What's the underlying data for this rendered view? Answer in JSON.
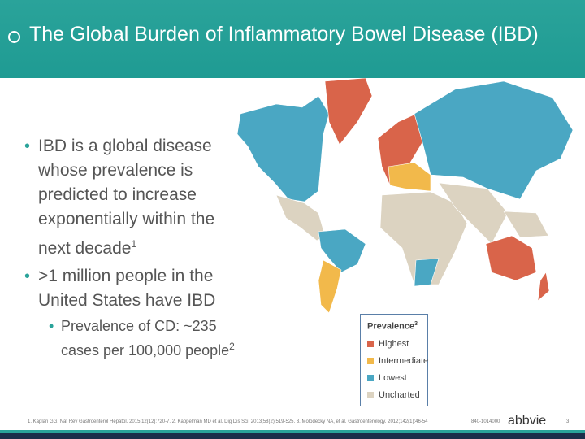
{
  "header": {
    "title": "The Global Burden of Inflammatory Bowel Disease (IBD)"
  },
  "bullets": [
    {
      "text": "IBD is a global disease whose prevalence is predicted to increase exponentially within the next decade",
      "ref": "1"
    },
    {
      "text": ">1 million people in the United States have IBD",
      "sub": [
        {
          "text": "Prevalence of CD: ~235 cases per 100,000 people",
          "ref": "2"
        }
      ]
    }
  ],
  "legend": {
    "title": "Prevalence",
    "ref": "3",
    "items": [
      {
        "name": "Highest",
        "color": "#d9644a"
      },
      {
        "name": "Intermediate",
        "color": "#f2b94b"
      },
      {
        "name": "Lowest",
        "color": "#4aa7c3"
      },
      {
        "name": "Uncharted",
        "color": "#dcd3c1"
      }
    ]
  },
  "footer": {
    "references": "1. Kaplan GG. Nat Rev Gastroenterol Hepatol. 2015;12(12):720-7. 2. Kappelman MD et al. Dig Dis Sci. 2013;58(2):519-525. 3. Molodecky NA, et al. Gastroenterology. 2012;142(1):46-54",
    "code": "840-1014000",
    "logo": "abbvie",
    "page": "3"
  }
}
